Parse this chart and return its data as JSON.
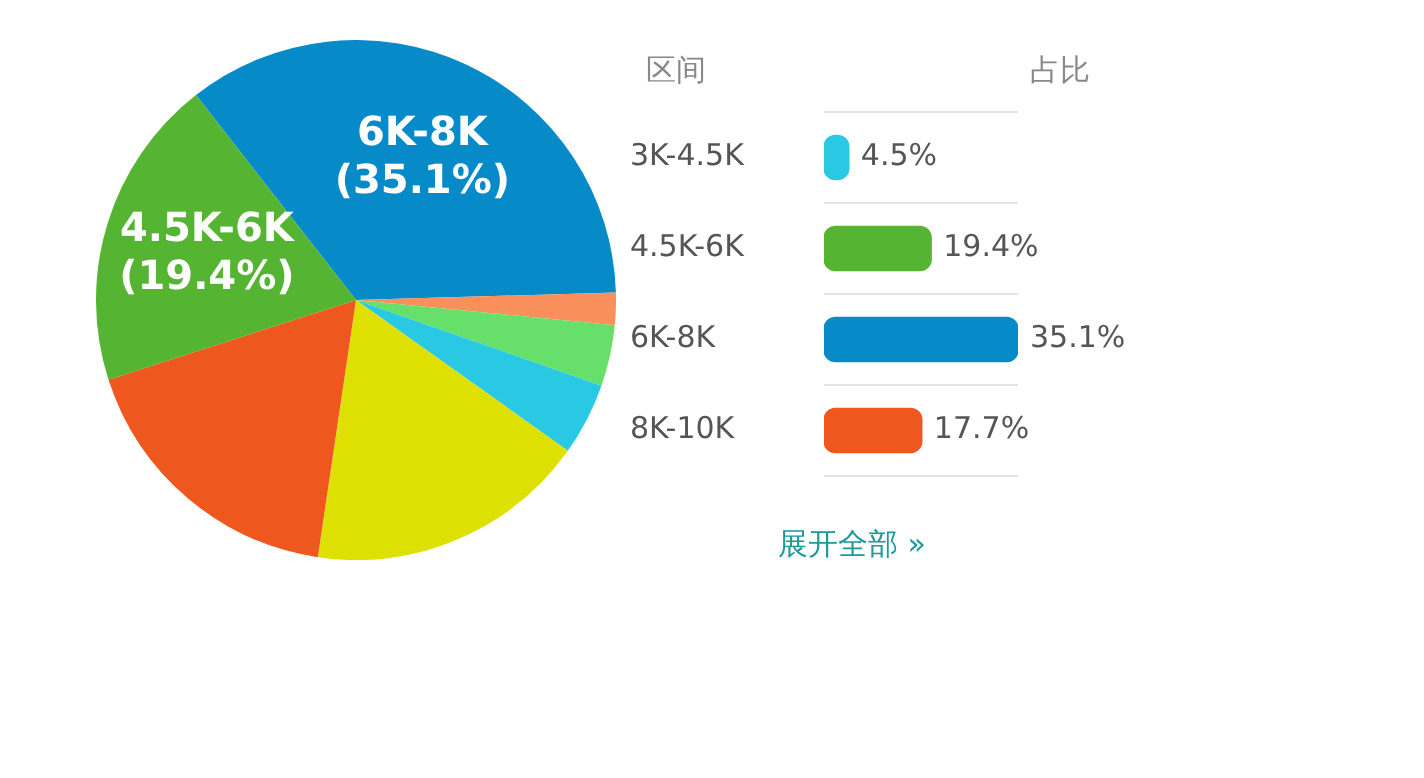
{
  "chart_data": [
    {
      "type": "pie",
      "categories": [
        "6K-8K",
        null,
        null,
        null,
        null,
        null,
        "4.5K-6K"
      ],
      "values": [
        35.1,
        2.0,
        3.8,
        4.5,
        17.5,
        17.7,
        19.4
      ],
      "colors": [
        "#068bc8",
        "#f98f5a",
        "#66e06a",
        "#29c9e4",
        "#dde000",
        "#ee581f",
        "#55b432"
      ],
      "value_labels": [
        "(35.1%)",
        null,
        null,
        null,
        null,
        null,
        "(19.4%)"
      ],
      "legend": false
    },
    {
      "type": "bar",
      "orientation": "horizontal",
      "ylabel": "区间",
      "xlabel": "占比",
      "categories": [
        "3K-4.5K",
        "4.5K-6K",
        "6K-8K",
        "8K-10K"
      ],
      "values": [
        4.5,
        19.4,
        35.1,
        17.7
      ],
      "colors": [
        "#29c9e4",
        "#55b432",
        "#068bc8",
        "#ee581f"
      ],
      "value_labels": [
        "4.5%",
        "19.4%",
        "35.1%",
        "17.7%"
      ],
      "grid": "y",
      "tick_labels": "y",
      "legend": false,
      "annotations": [
        "展开全部 »"
      ]
    }
  ]
}
